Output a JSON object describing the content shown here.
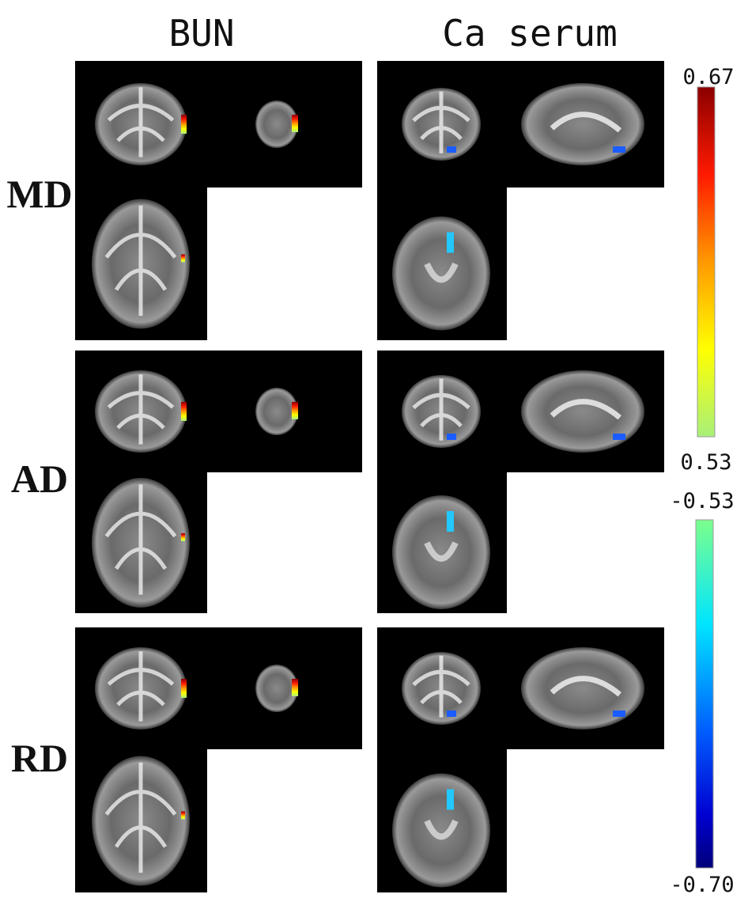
{
  "columns": [
    "BUN",
    "Ca serum"
  ],
  "rows": [
    "MD",
    "AD",
    "RD"
  ],
  "colorbars": [
    {
      "top_label": "0.67",
      "bottom_label": "0.53"
    },
    {
      "top_label": "-0.53",
      "bottom_label": "-0.70"
    }
  ]
}
